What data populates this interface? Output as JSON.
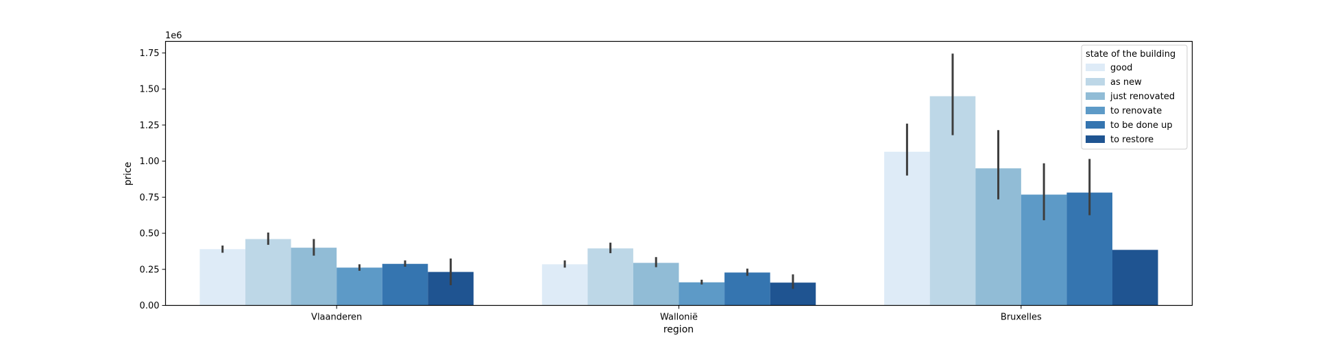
{
  "chart_data": {
    "type": "bar",
    "title": "",
    "xlabel": "region",
    "ylabel": "price",
    "y_scale_label": "1e6",
    "y_scale": 1000000,
    "ylim": [
      0,
      1830000
    ],
    "y_ticks": [
      0,
      250000,
      500000,
      750000,
      1000000,
      1250000,
      1500000,
      1750000
    ],
    "y_tick_labels": [
      "0.00",
      "0.25",
      "0.50",
      "0.75",
      "1.00",
      "1.25",
      "1.50",
      "1.75"
    ],
    "grid": false,
    "legend_position": "top-right",
    "legend_title": "state of the building",
    "categories": [
      "Vlaanderen",
      "Wallonië",
      "Bruxelles"
    ],
    "series": [
      {
        "name": "good",
        "color": "#deebf7",
        "values": [
          390000,
          285000,
          1065000
        ],
        "ci_low": [
          365000,
          262000,
          900000
        ],
        "ci_high": [
          415000,
          312000,
          1260000
        ]
      },
      {
        "name": "as new",
        "color": "#bdd7e7",
        "values": [
          460000,
          395000,
          1450000
        ],
        "ci_low": [
          420000,
          362000,
          1180000
        ],
        "ci_high": [
          505000,
          435000,
          1745000
        ]
      },
      {
        "name": "just renovated",
        "color": "#91bcd6",
        "values": [
          400000,
          295000,
          950000
        ],
        "ci_low": [
          345000,
          265000,
          735000
        ],
        "ci_high": [
          460000,
          335000,
          1215000
        ]
      },
      {
        "name": "to renovate",
        "color": "#5d9ac7",
        "values": [
          262000,
          160000,
          768000
        ],
        "ci_low": [
          240000,
          145000,
          590000
        ],
        "ci_high": [
          285000,
          178000,
          985000
        ]
      },
      {
        "name": "to be done up",
        "color": "#3575b0",
        "values": [
          288000,
          228000,
          782000
        ],
        "ci_low": [
          268000,
          205000,
          625000
        ],
        "ci_high": [
          312000,
          255000,
          1015000
        ]
      },
      {
        "name": "to restore",
        "color": "#1f5491",
        "values": [
          232000,
          158000,
          385000
        ],
        "ci_low": [
          140000,
          115000,
          null
        ],
        "ci_high": [
          325000,
          215000,
          null
        ]
      }
    ]
  }
}
